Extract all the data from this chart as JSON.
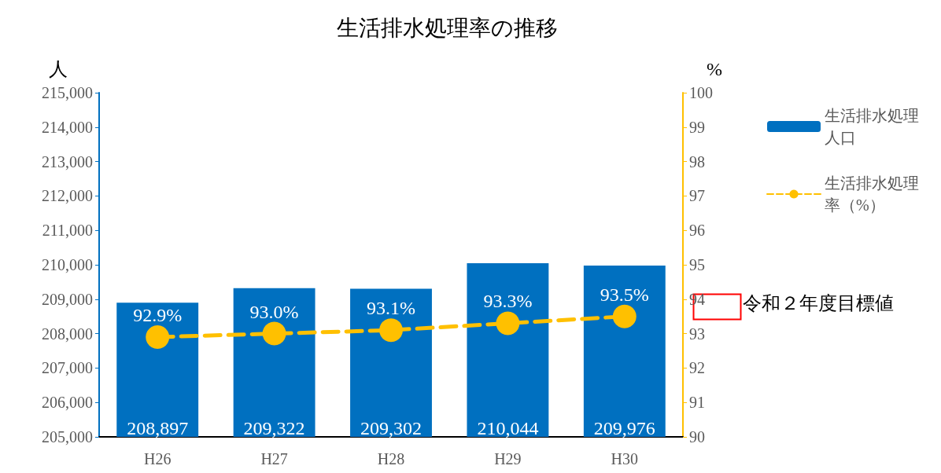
{
  "chart_data": {
    "type": "bar",
    "title": "生活排水処理率の推移",
    "ylabel": "人",
    "y2label": "%",
    "categories": [
      "H26",
      "H27",
      "H28",
      "H29",
      "H30"
    ],
    "series": [
      {
        "name": "生活排水処理人口",
        "color": "#0070c0",
        "values": [
          208897,
          209322,
          209302,
          210044,
          209976
        ],
        "value_labels": [
          "208,897",
          "209,322",
          "209,302",
          "210,044",
          "209,976"
        ]
      },
      {
        "name": "生活排水処理率（%）",
        "type": "line",
        "axis": "y2",
        "color": "#ffc000",
        "marker": "circle",
        "line_style": "dashed",
        "values": [
          92.9,
          93.0,
          93.1,
          93.3,
          93.5
        ],
        "value_labels": [
          "92.9%",
          "93.0%",
          "93.1%",
          "93.3%",
          "93.5%"
        ]
      }
    ],
    "ylim": [
      205000,
      215000
    ],
    "yticks": [
      {
        "value": 205000,
        "label": "205,000"
      },
      {
        "value": 206000,
        "label": "206,000"
      },
      {
        "value": 207000,
        "label": "207,000"
      },
      {
        "value": 208000,
        "label": "208,000"
      },
      {
        "value": 209000,
        "label": "209,000"
      },
      {
        "value": 210000,
        "label": "210,000"
      },
      {
        "value": 211000,
        "label": "211,000"
      },
      {
        "value": 212000,
        "label": "212,000"
      },
      {
        "value": 213000,
        "label": "213,000"
      },
      {
        "value": 214000,
        "label": "214,000"
      },
      {
        "value": 215000,
        "label": "215,000"
      }
    ],
    "y2lim": [
      90,
      100
    ],
    "y2ticks": [
      90,
      91,
      92,
      93,
      94,
      95,
      96,
      97,
      98,
      99,
      100
    ],
    "annotations": [
      "令和２年度目標値"
    ],
    "grid": false,
    "legend": "right"
  }
}
